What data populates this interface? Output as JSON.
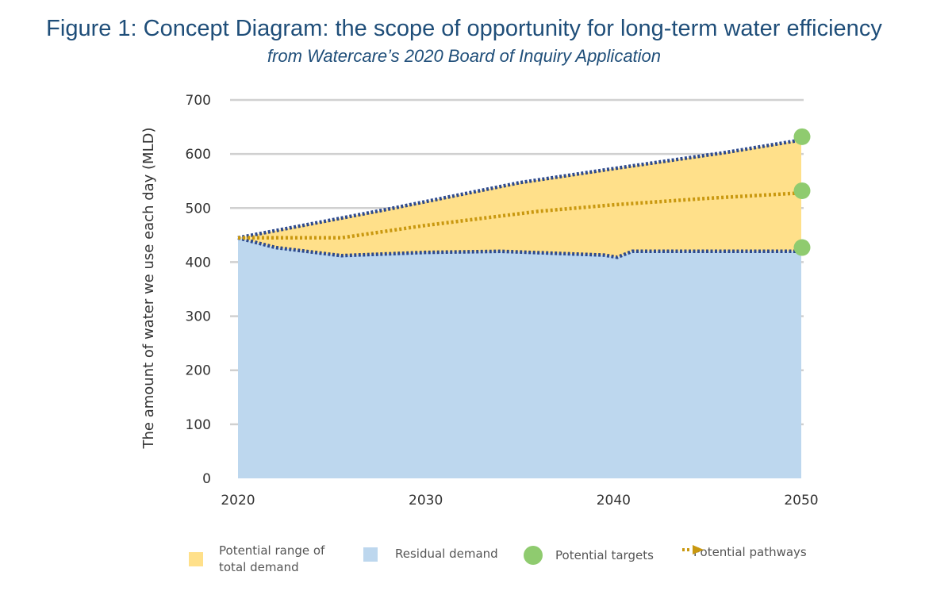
{
  "figure": {
    "title": "Figure 1: Concept Diagram: the scope of opportunity for long-term water efficiency",
    "subtitle": "from Watercare’s 2020 Board of Inquiry Application"
  },
  "chart_data": {
    "type": "area",
    "title": "",
    "xlabel": "",
    "ylabel": "The amount of water we use each day (MLD)",
    "x_ticks": [
      "2020",
      "2030",
      "2040",
      "2050"
    ],
    "y_ticks": [
      "0",
      "100",
      "200",
      "300",
      "400",
      "500",
      "600",
      "700"
    ],
    "xlim": [
      2020,
      2050
    ],
    "ylim": [
      0,
      700
    ],
    "grid": "horizontal",
    "legend_position": "bottom",
    "colors": {
      "range": "#ffe08a",
      "residual": "#bdd7ee",
      "target": "#8fcb6f",
      "bound_line": "#2e4a8c",
      "pathway": "#c9980f",
      "grid": "#d0d0d0"
    },
    "series": [
      {
        "name": "Potential range of total demand",
        "upper_x": [
          2020,
          2028,
          2035,
          2040,
          2046,
          2050
        ],
        "upper_y": [
          445,
          498,
          547,
          573,
          603,
          626
        ],
        "lower_x": [
          2020,
          2022,
          2025.5,
          2030,
          2034,
          2039.5,
          2040.2,
          2041,
          2050
        ],
        "lower_y": [
          445,
          427,
          412,
          418,
          420,
          413,
          409,
          420,
          420
        ]
      },
      {
        "name": "Residual demand",
        "x": [
          2020,
          2022,
          2025.5,
          2030,
          2034,
          2039.5,
          2040.2,
          2041,
          2050
        ],
        "y": [
          445,
          427,
          412,
          418,
          420,
          413,
          409,
          420,
          420
        ]
      },
      {
        "name": "Potential pathways",
        "x": [
          2020,
          2025.5,
          2030,
          2036,
          2040,
          2045,
          2050
        ],
        "y": [
          445,
          445,
          468,
          494,
          506,
          518,
          528
        ]
      },
      {
        "name": "Potential targets",
        "x": [
          2050,
          2050,
          2050
        ],
        "y": [
          632,
          532,
          427
        ]
      }
    ],
    "legend": [
      "Potential range of total demand",
      "Residual demand",
      "Potential targets",
      "Potential pathways"
    ]
  },
  "legend": {
    "range_label": "Potential range of total demand",
    "residual_label": "Residual demand",
    "targets_label": "Potential targets",
    "pathways_label": "Potential pathways"
  }
}
